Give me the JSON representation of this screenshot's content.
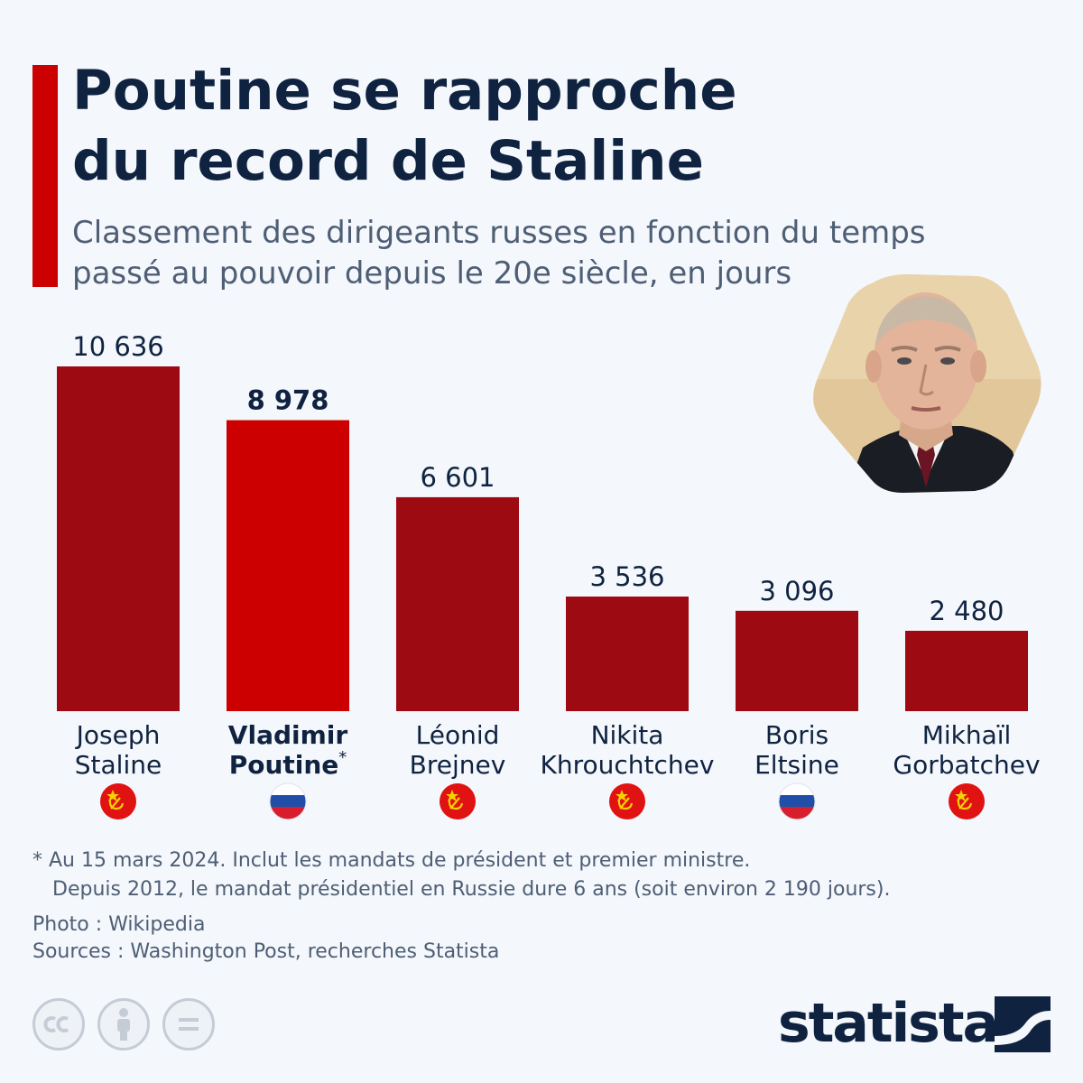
{
  "title": [
    "Poutine se rapproche",
    "du record de Staline"
  ],
  "subtitle": [
    "Classement des dirigeants russes en fonction du temps",
    "passé au pouvoir depuis le 20e siècle, en jours"
  ],
  "colors": {
    "accent": "#cc0000",
    "bar_dark": "#9e0a12",
    "bar_highlight": "#cc0000",
    "title": "#0f2340",
    "subtitle": "#4e5e75",
    "background": "#f4f7fb"
  },
  "chart_data": {
    "type": "bar",
    "title": "Poutine se rapproche du record de Staline",
    "subtitle": "Classement des dirigeants russes en fonction du temps passé au pouvoir depuis le 20e siècle, en jours",
    "unit": "jours",
    "categories": [
      [
        "Joseph",
        "Staline"
      ],
      [
        "Vladimir",
        "Poutine"
      ],
      [
        "Léonid",
        "Brejnev"
      ],
      [
        "Nikita",
        "Khrouchtchev"
      ],
      [
        "Boris",
        "Eltsine"
      ],
      [
        "Mikhaïl",
        "Gorbatchev"
      ]
    ],
    "values": [
      10636,
      8978,
      6601,
      3536,
      3096,
      2480
    ],
    "value_labels": [
      "10 636",
      "8 978",
      "6 601",
      "3 536",
      "3 096",
      "2 480"
    ],
    "highlight_index": 1,
    "highlight_marker": "*",
    "flags": [
      "ussr-flag-icon",
      "russia-flag-icon",
      "ussr-flag-icon",
      "ussr-flag-icon",
      "russia-flag-icon",
      "ussr-flag-icon"
    ],
    "ylim": [
      0,
      10636
    ],
    "grid": false,
    "legend": "none"
  },
  "photo_icon": "putin-portrait-icon",
  "footnote": {
    "line1": "* Au 15 mars 2024. Inclut les mandats de président et premier ministre.",
    "line2": "Depuis 2012, le mandat présidentiel en Russie dure 6 ans (soit environ 2 190 jours)."
  },
  "credits": {
    "photo": "Photo : Wikipedia",
    "sources": "Sources : Washington Post, recherches Statista"
  },
  "license_icons": [
    "cc-icon",
    "attribution-icon",
    "no-derivatives-icon"
  ],
  "logo": {
    "text": "statista",
    "icon": "statista-logo-icon"
  }
}
